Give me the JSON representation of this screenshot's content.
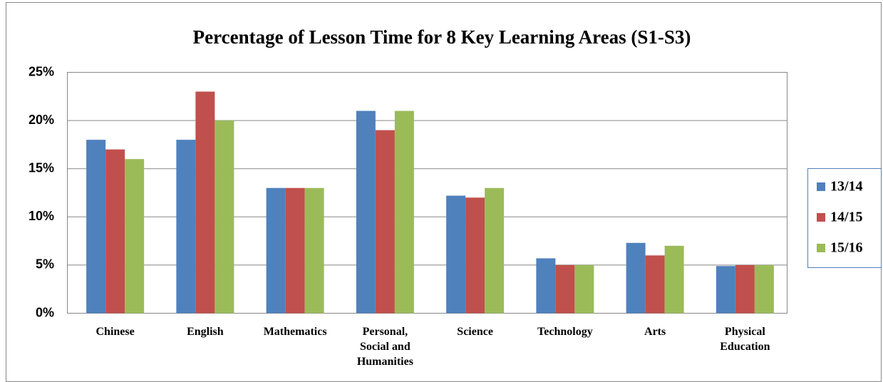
{
  "chart_data": {
    "type": "bar",
    "title": "Percentage of Lesson Time for 8 Key Learning Areas (S1-S3)",
    "categories": [
      "Chinese",
      "English",
      "Mathematics",
      "Personal, Social and Humanities",
      "Science",
      "Technology",
      "Arts",
      "Physical Education"
    ],
    "series": [
      {
        "name": "13/14",
        "color": "#4f81bd",
        "values": [
          18,
          18,
          13,
          21,
          12.2,
          5.7,
          7.3,
          4.9
        ]
      },
      {
        "name": "14/15",
        "color": "#c0504d",
        "values": [
          17,
          23,
          13,
          19,
          12,
          5,
          6,
          5
        ]
      },
      {
        "name": "15/16",
        "color": "#9bbb59",
        "values": [
          16,
          20,
          13,
          21,
          13,
          5,
          7,
          5
        ]
      }
    ],
    "ylim": [
      0,
      25
    ],
    "yticks": [
      {
        "value": 0,
        "label": "0%"
      },
      {
        "value": 5,
        "label": "5%"
      },
      {
        "value": 10,
        "label": "10%"
      },
      {
        "value": 15,
        "label": "15%"
      },
      {
        "value": 20,
        "label": "20%"
      },
      {
        "value": 25,
        "label": "25%"
      }
    ],
    "grid": true,
    "legend": "right"
  }
}
